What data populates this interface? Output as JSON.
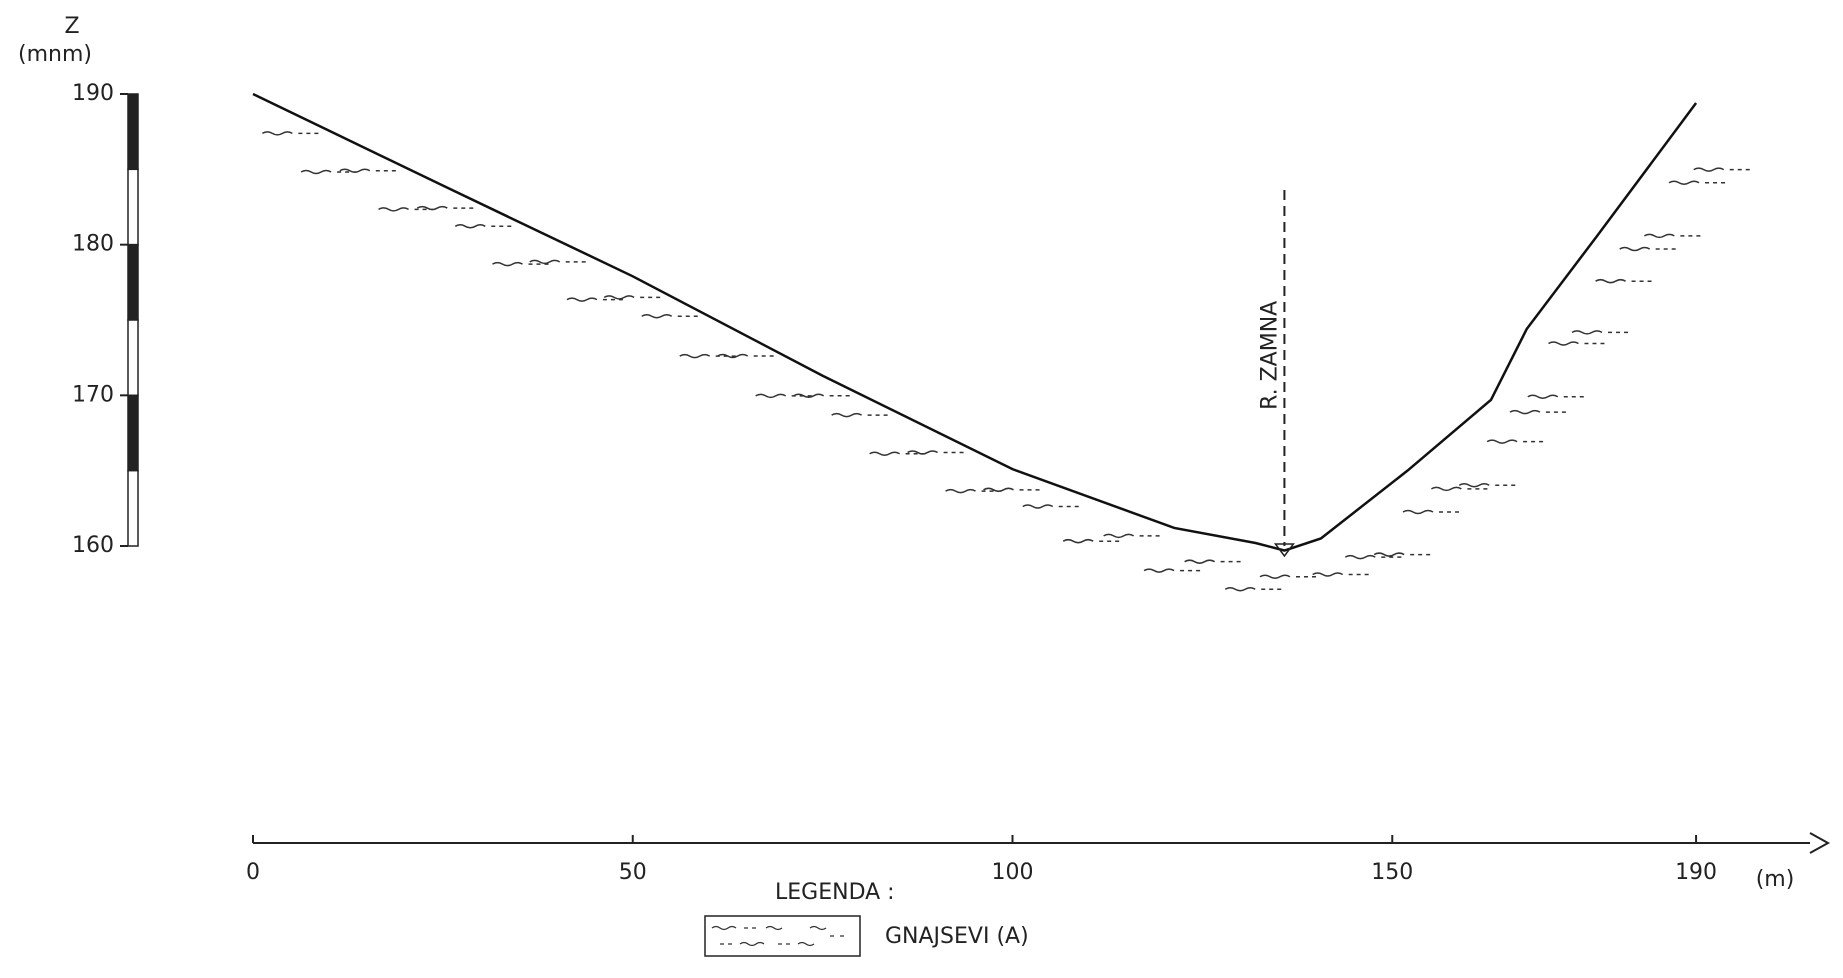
{
  "chart_data": {
    "type": "line",
    "y_label": [
      "Z",
      "(mnm)"
    ],
    "x_label": "(m)",
    "x": [
      0,
      25.5,
      50,
      75,
      100,
      121.3,
      132,
      135.8,
      140.6,
      152,
      163,
      167.7,
      177,
      190
    ],
    "values": [
      190,
      183.8,
      177.9,
      171.3,
      165.1,
      161.2,
      160.2,
      159.7,
      160.5,
      165,
      169.7,
      174.4,
      180.6,
      189.4
    ],
    "color": "#111",
    "xlim": [
      0,
      205
    ],
    "ylim": [
      160,
      190
    ],
    "xticks": [
      0,
      50,
      100,
      150,
      190
    ],
    "yticks": [
      160,
      170,
      180,
      190
    ],
    "annotation": {
      "text": "R. ZAMNA",
      "x": 135.8
    },
    "legend_title": "LEGENDA :",
    "legend_items": [
      "GNAJSEVI (A)"
    ]
  }
}
